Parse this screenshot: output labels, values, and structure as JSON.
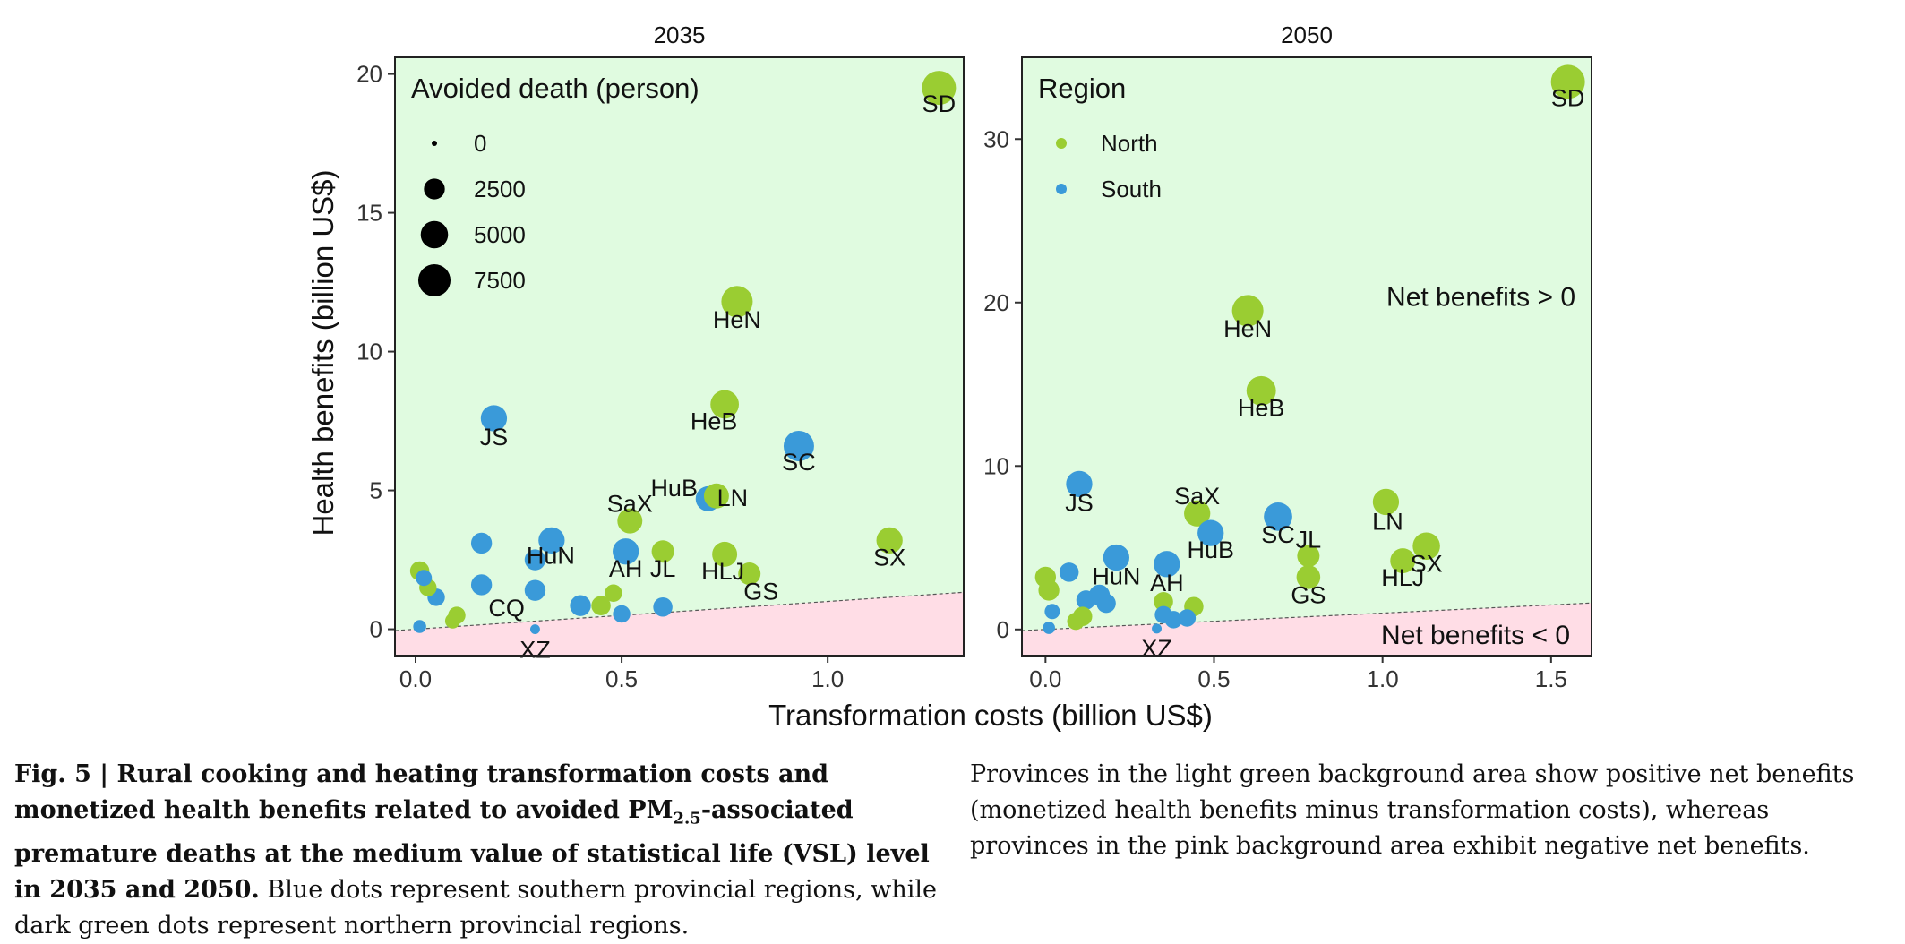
{
  "chart_data": [
    {
      "type": "scatter",
      "title": "2035",
      "xlabel": "Transformation costs (billion US$)",
      "ylabel": "Health benefits (billion US$)",
      "xlim": [
        -0.05,
        1.33
      ],
      "ylim": [
        -0.95,
        20.6
      ],
      "xticks": [
        "0.0",
        "0.5",
        "1.0"
      ],
      "xtick_values": [
        0,
        0.5,
        1.0
      ],
      "yticks": [
        "0",
        "5",
        "10",
        "15",
        "20"
      ],
      "ytick_values": [
        0,
        5,
        10,
        15,
        20
      ],
      "net_benefit_line": {
        "x": [
          -0.05,
          1.33
        ],
        "y": [
          -0.05,
          1.33
        ]
      },
      "legend": {
        "title": "Avoided death (person)",
        "placement": "top-left",
        "entries": [
          {
            "label": "0",
            "value": 0
          },
          {
            "label": "2500",
            "value": 2500
          },
          {
            "label": "5000",
            "value": 5000
          },
          {
            "label": "7500",
            "value": 7500
          }
        ]
      },
      "annotations": [],
      "points": [
        {
          "label": "SD",
          "region": "North",
          "x": 1.27,
          "y": 19.5,
          "deaths": 8500
        },
        {
          "label": "HeN",
          "region": "North",
          "x": 0.78,
          "y": 11.8,
          "deaths": 7000
        },
        {
          "label": "JS",
          "region": "South",
          "x": 0.19,
          "y": 7.6,
          "deaths": 4500
        },
        {
          "label": "HeB",
          "region": "North",
          "x": 0.75,
          "y": 8.1,
          "deaths": 5500
        },
        {
          "label": "SC",
          "region": "South",
          "x": 0.93,
          "y": 6.6,
          "deaths": 6500
        },
        {
          "label": "HuB",
          "region": "South",
          "x": 0.71,
          "y": 4.7,
          "deaths": 4000
        },
        {
          "label": "LN",
          "region": "North",
          "x": 0.73,
          "y": 4.8,
          "deaths": 4000
        },
        {
          "label": "SaX",
          "region": "North",
          "x": 0.52,
          "y": 3.9,
          "deaths": 4000
        },
        {
          "label": "HuN",
          "region": "South",
          "x": 0.33,
          "y": 3.2,
          "deaths": 4500
        },
        {
          "label": "AH",
          "region": "South",
          "x": 0.51,
          "y": 2.8,
          "deaths": 4500
        },
        {
          "label": "JL",
          "region": "North",
          "x": 0.6,
          "y": 2.8,
          "deaths": 3000
        },
        {
          "label": "HLJ",
          "region": "North",
          "x": 0.75,
          "y": 2.7,
          "deaths": 4000
        },
        {
          "label": "GS",
          "region": "North",
          "x": 0.81,
          "y": 2.0,
          "deaths": 3000
        },
        {
          "label": "SX",
          "region": "North",
          "x": 1.15,
          "y": 3.2,
          "deaths": 4500
        },
        {
          "label": "CQ",
          "region": "South",
          "x": 0.16,
          "y": 1.6,
          "deaths": 2500
        },
        {
          "label": "XZ",
          "region": "South",
          "x": 0.29,
          "y": 0.0,
          "deaths": 200
        },
        {
          "label": "",
          "region": "South",
          "x": 0.16,
          "y": 3.1,
          "deaths": 2500
        },
        {
          "label": "",
          "region": "South",
          "x": 0.29,
          "y": 2.5,
          "deaths": 2500
        },
        {
          "label": "",
          "region": "South",
          "x": 0.29,
          "y": 1.4,
          "deaths": 2500
        },
        {
          "label": "",
          "region": "South",
          "x": 0.4,
          "y": 0.85,
          "deaths": 2500
        },
        {
          "label": "",
          "region": "South",
          "x": 0.5,
          "y": 0.55,
          "deaths": 1500
        },
        {
          "label": "",
          "region": "South",
          "x": 0.6,
          "y": 0.8,
          "deaths": 2000
        },
        {
          "label": "",
          "region": "South",
          "x": 0.05,
          "y": 1.15,
          "deaths": 1500
        },
        {
          "label": "",
          "region": "South",
          "x": 0.02,
          "y": 1.85,
          "deaths": 1200
        },
        {
          "label": "",
          "region": "South",
          "x": 0.01,
          "y": 0.1,
          "deaths": 600
        },
        {
          "label": "",
          "region": "North",
          "x": 0.01,
          "y": 2.1,
          "deaths": 2000
        },
        {
          "label": "",
          "region": "North",
          "x": 0.03,
          "y": 1.5,
          "deaths": 1500
        },
        {
          "label": "",
          "region": "North",
          "x": 0.1,
          "y": 0.5,
          "deaths": 1500
        },
        {
          "label": "",
          "region": "North",
          "x": 0.09,
          "y": 0.3,
          "deaths": 1000
        },
        {
          "label": "",
          "region": "North",
          "x": 0.45,
          "y": 0.85,
          "deaths": 2000
        },
        {
          "label": "",
          "region": "North",
          "x": 0.48,
          "y": 1.3,
          "deaths": 1500
        }
      ]
    },
    {
      "type": "scatter",
      "title": "2050",
      "xlabel": "Transformation costs (billion US$)",
      "ylabel": "Health benefits (billion US$)",
      "xlim": [
        -0.07,
        1.62
      ],
      "ylim": [
        -1.6,
        35.0
      ],
      "xticks": [
        "0.0",
        "0.5",
        "1.0",
        "1.5"
      ],
      "xtick_values": [
        0,
        0.5,
        1.0,
        1.5
      ],
      "yticks": [
        "0",
        "10",
        "20",
        "30"
      ],
      "ytick_values": [
        0,
        10,
        20,
        30
      ],
      "net_benefit_line": {
        "x": [
          -0.07,
          1.62
        ],
        "y": [
          -0.07,
          1.62
        ]
      },
      "legend": {
        "title": "Region",
        "placement": "top-left",
        "entries": [
          {
            "label": "North",
            "color": "#9ACD32"
          },
          {
            "label": "South",
            "color": "#3A9AD9"
          }
        ]
      },
      "annotations": [
        "Net benefits > 0",
        "Net benefits < 0"
      ],
      "points": [
        {
          "label": "SD",
          "region": "North",
          "x": 1.55,
          "y": 33.5,
          "deaths": 8500
        },
        {
          "label": "HeN",
          "region": "North",
          "x": 0.6,
          "y": 19.5,
          "deaths": 7000
        },
        {
          "label": "HeB",
          "region": "North",
          "x": 0.64,
          "y": 14.6,
          "deaths": 6000
        },
        {
          "label": "JS",
          "region": "South",
          "x": 0.1,
          "y": 8.9,
          "deaths": 4500
        },
        {
          "label": "SaX",
          "region": "North",
          "x": 0.45,
          "y": 7.1,
          "deaths": 4500
        },
        {
          "label": "HuB",
          "region": "South",
          "x": 0.49,
          "y": 5.9,
          "deaths": 4500
        },
        {
          "label": "SC",
          "region": "South",
          "x": 0.69,
          "y": 6.9,
          "deaths": 5500
        },
        {
          "label": "JL",
          "region": "North",
          "x": 0.78,
          "y": 4.5,
          "deaths": 3000
        },
        {
          "label": "LN",
          "region": "North",
          "x": 1.01,
          "y": 7.8,
          "deaths": 4500
        },
        {
          "label": "SX",
          "region": "North",
          "x": 1.13,
          "y": 5.1,
          "deaths": 5000
        },
        {
          "label": "HLJ",
          "region": "North",
          "x": 1.06,
          "y": 4.2,
          "deaths": 4000
        },
        {
          "label": "GS",
          "region": "North",
          "x": 0.78,
          "y": 3.2,
          "deaths": 3500
        },
        {
          "label": "HuN",
          "region": "South",
          "x": 0.21,
          "y": 4.4,
          "deaths": 4500
        },
        {
          "label": "AH",
          "region": "South",
          "x": 0.36,
          "y": 4.0,
          "deaths": 4500
        },
        {
          "label": "XZ",
          "region": "South",
          "x": 0.33,
          "y": 0.05,
          "deaths": 200
        },
        {
          "label": "",
          "region": "South",
          "x": 0.07,
          "y": 3.5,
          "deaths": 2000
        },
        {
          "label": "",
          "region": "South",
          "x": 0.12,
          "y": 1.8,
          "deaths": 2000
        },
        {
          "label": "",
          "region": "South",
          "x": 0.16,
          "y": 2.1,
          "deaths": 2500
        },
        {
          "label": "",
          "region": "South",
          "x": 0.18,
          "y": 1.6,
          "deaths": 2000
        },
        {
          "label": "",
          "region": "South",
          "x": 0.35,
          "y": 0.9,
          "deaths": 1500
        },
        {
          "label": "",
          "region": "South",
          "x": 0.38,
          "y": 0.6,
          "deaths": 1500
        },
        {
          "label": "",
          "region": "South",
          "x": 0.42,
          "y": 0.7,
          "deaths": 1500
        },
        {
          "label": "",
          "region": "South",
          "x": 0.02,
          "y": 1.1,
          "deaths": 1000
        },
        {
          "label": "",
          "region": "South",
          "x": 0.01,
          "y": 0.1,
          "deaths": 500
        },
        {
          "label": "",
          "region": "North",
          "x": 0.0,
          "y": 3.2,
          "deaths": 2500
        },
        {
          "label": "",
          "region": "North",
          "x": 0.01,
          "y": 2.4,
          "deaths": 2500
        },
        {
          "label": "",
          "region": "North",
          "x": 0.11,
          "y": 0.8,
          "deaths": 2000
        },
        {
          "label": "",
          "region": "North",
          "x": 0.09,
          "y": 0.5,
          "deaths": 1500
        },
        {
          "label": "",
          "region": "North",
          "x": 0.35,
          "y": 1.7,
          "deaths": 2000
        },
        {
          "label": "",
          "region": "North",
          "x": 0.44,
          "y": 1.4,
          "deaths": 2000
        }
      ]
    }
  ],
  "colors": {
    "north": "#9ACD32",
    "south": "#3A9AD9",
    "positive_bg": "#E0FBE0",
    "negative_bg": "#FFDDE6"
  },
  "caption": {
    "fig_label": "Fig. 5 | ",
    "title_part1": "Rural cooking and heating transformation costs and monetized health benefits related to avoided PM",
    "title_sub": "2.5",
    "title_part2": "-associated premature deaths at the medium value of statistical life (VSL) level in 2035 and 2050.",
    "body_left": " Blue dots represent southern provincial regions, while dark green dots represent northern provincial regions.",
    "body_right": "Provinces in the light green background area show positive net benefits (monetized health benefits minus transformation costs), whereas provinces in the pink background area exhibit negative net benefits."
  }
}
